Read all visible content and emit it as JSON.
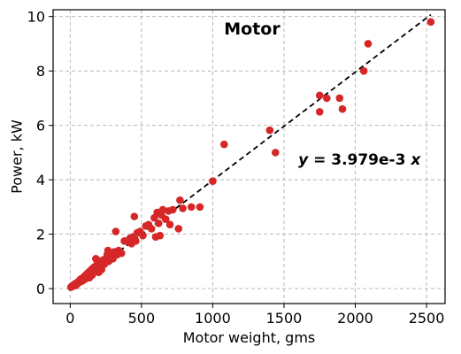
{
  "chart_data": {
    "type": "scatter",
    "title": "Motor",
    "xlabel": "Motor weight, gms",
    "ylabel": "Power, kW",
    "xlim": [
      -120,
      2630
    ],
    "ylim": [
      -0.55,
      10.25
    ],
    "xticks": [
      0,
      500,
      1000,
      1500,
      2000,
      2500
    ],
    "yticks": [
      0,
      2,
      4,
      6,
      8,
      10
    ],
    "xtick_labels": [
      "0",
      "500",
      "1000",
      "1500",
      "2000",
      "2500"
    ],
    "ytick_labels": [
      "0",
      "2",
      "4",
      "6",
      "8",
      "10"
    ],
    "grid": true,
    "point_color": "#d62728",
    "fit_line": {
      "slope": 0.003979,
      "x_range": [
        0,
        2530
      ],
      "color": "#000000",
      "style": "dashed"
    },
    "annotation": {
      "var_y": "y",
      "eq": " = 3.979e-3 ",
      "var_x": "x",
      "x": 1600,
      "y": 4.75
    },
    "points": [
      [
        5,
        0.05
      ],
      [
        10,
        0.07
      ],
      [
        15,
        0.1
      ],
      [
        20,
        0.12
      ],
      [
        25,
        0.1
      ],
      [
        30,
        0.15
      ],
      [
        35,
        0.18
      ],
      [
        40,
        0.12
      ],
      [
        45,
        0.2
      ],
      [
        50,
        0.18
      ],
      [
        55,
        0.25
      ],
      [
        60,
        0.22
      ],
      [
        65,
        0.3
      ],
      [
        70,
        0.25
      ],
      [
        75,
        0.35
      ],
      [
        80,
        0.3
      ],
      [
        85,
        0.28
      ],
      [
        90,
        0.4
      ],
      [
        95,
        0.38
      ],
      [
        100,
        0.45
      ],
      [
        105,
        0.35
      ],
      [
        110,
        0.5
      ],
      [
        115,
        0.42
      ],
      [
        120,
        0.55
      ],
      [
        125,
        0.48
      ],
      [
        130,
        0.6
      ],
      [
        135,
        0.4
      ],
      [
        140,
        0.65
      ],
      [
        145,
        0.55
      ],
      [
        150,
        0.7
      ],
      [
        155,
        0.5
      ],
      [
        160,
        0.75
      ],
      [
        165,
        0.62
      ],
      [
        170,
        0.8
      ],
      [
        175,
        0.68
      ],
      [
        180,
        1.1
      ],
      [
        185,
        0.72
      ],
      [
        190,
        0.9
      ],
      [
        200,
        0.6
      ],
      [
        205,
        0.85
      ],
      [
        210,
        1.0
      ],
      [
        220,
        0.7
      ],
      [
        225,
        0.95
      ],
      [
        230,
        1.05
      ],
      [
        240,
        0.9
      ],
      [
        250,
        1.1
      ],
      [
        260,
        1.25
      ],
      [
        265,
        1.4
      ],
      [
        270,
        1.0
      ],
      [
        280,
        1.2
      ],
      [
        290,
        1.3
      ],
      [
        300,
        1.1
      ],
      [
        310,
        1.35
      ],
      [
        320,
        2.1
      ],
      [
        330,
        1.25
      ],
      [
        340,
        1.4
      ],
      [
        360,
        1.3
      ],
      [
        380,
        1.75
      ],
      [
        400,
        1.75
      ],
      [
        420,
        1.85
      ],
      [
        430,
        1.65
      ],
      [
        440,
        1.9
      ],
      [
        450,
        2.65
      ],
      [
        460,
        1.75
      ],
      [
        470,
        2.05
      ],
      [
        490,
        2.1
      ],
      [
        510,
        1.95
      ],
      [
        530,
        2.3
      ],
      [
        550,
        2.35
      ],
      [
        570,
        2.2
      ],
      [
        590,
        2.6
      ],
      [
        600,
        1.9
      ],
      [
        610,
        2.8
      ],
      [
        620,
        2.4
      ],
      [
        630,
        1.95
      ],
      [
        640,
        2.7
      ],
      [
        650,
        2.9
      ],
      [
        670,
        2.55
      ],
      [
        690,
        2.85
      ],
      [
        700,
        2.35
      ],
      [
        720,
        2.9
      ],
      [
        760,
        2.2
      ],
      [
        770,
        3.25
      ],
      [
        790,
        2.95
      ],
      [
        850,
        3.0
      ],
      [
        910,
        3.0
      ],
      [
        1000,
        3.95
      ],
      [
        1080,
        5.3
      ],
      [
        1400,
        5.82
      ],
      [
        1440,
        5.0
      ],
      [
        1750,
        7.1
      ],
      [
        1750,
        6.5
      ],
      [
        1800,
        7.0
      ],
      [
        1890,
        7.0
      ],
      [
        1910,
        6.6
      ],
      [
        2060,
        8.0
      ],
      [
        2090,
        9.0
      ],
      [
        2530,
        9.8
      ]
    ]
  }
}
